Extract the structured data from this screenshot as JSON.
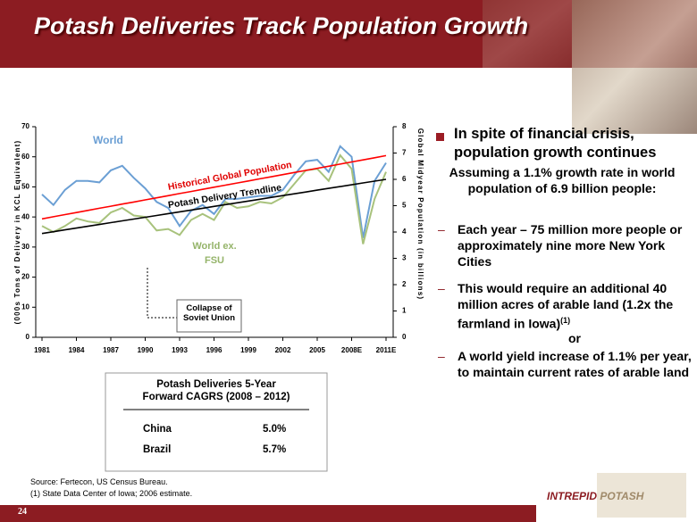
{
  "header": {
    "title": "Potash Deliveries Track Population Growth"
  },
  "chart_data": {
    "type": "line",
    "y_label": "(000s Tons of Delivery in KCL Equivalent)",
    "y2_label": "Global Midyear Population (in billions)",
    "categories": [
      "1981",
      null,
      null,
      "1984",
      null,
      null,
      "1987",
      null,
      null,
      "1990",
      null,
      null,
      "1993",
      null,
      null,
      "1996",
      null,
      null,
      "1999",
      null,
      null,
      "2002",
      null,
      null,
      "2005",
      null,
      null,
      "2008E",
      null,
      null,
      "2011E"
    ],
    "ylim": [
      0,
      70
    ],
    "yticks": [
      0,
      10,
      20,
      30,
      40,
      50,
      60,
      70
    ],
    "y2lim": [
      0,
      8
    ],
    "y2ticks": [
      0,
      1,
      2,
      3,
      4,
      5,
      6,
      7,
      8
    ],
    "series": [
      {
        "name": "World",
        "color": "#6b9fd4",
        "values": [
          47.5,
          44,
          49,
          52,
          52,
          51.5,
          55.5,
          57,
          53,
          49.5,
          45,
          43,
          37,
          42,
          44,
          41,
          46,
          46,
          46.5,
          47,
          47,
          49,
          54,
          58.5,
          59,
          55,
          63.5,
          60,
          33,
          52,
          58
        ]
      },
      {
        "name": "World ex. FSU",
        "color": "#a8c27c",
        "values": [
          37,
          35,
          37,
          39.5,
          38.5,
          38,
          41.5,
          43,
          40.5,
          40,
          35.5,
          36,
          34,
          39,
          41,
          39,
          45,
          43,
          43.5,
          45,
          44.5,
          46.5,
          51,
          55.5,
          56,
          52,
          60.5,
          56,
          31,
          46,
          55
        ]
      },
      {
        "name": "Historical Global Population",
        "color": "#ff0000",
        "axis": "y2",
        "values": [
          4.5,
          4.58,
          4.66,
          4.74,
          4.82,
          4.9,
          4.98,
          5.06,
          5.14,
          5.22,
          5.3,
          5.38,
          5.46,
          5.54,
          5.62,
          5.7,
          5.78,
          5.86,
          5.94,
          6.02,
          6.1,
          6.18,
          6.26,
          6.34,
          6.42,
          6.5,
          6.58,
          6.66,
          6.74,
          6.82,
          6.9
        ]
      },
      {
        "name": "Potash Delivery Trendline",
        "color": "#000000",
        "values": [
          34.5,
          35.1,
          35.7,
          36.3,
          36.9,
          37.5,
          38.1,
          38.7,
          39.3,
          39.9,
          40.5,
          41.1,
          41.7,
          42.3,
          42.9,
          43.5,
          44.1,
          44.7,
          45.3,
          45.9,
          46.5,
          47.1,
          47.7,
          48.3,
          48.9,
          49.5,
          50.1,
          50.7,
          51.3,
          51.9,
          52.5
        ]
      }
    ],
    "annotations": [
      "Collapse of Soviet Union"
    ]
  },
  "table": {
    "title": "Potash Deliveries  5-Year Forward CAGRS (2008 – 2012)",
    "rows": [
      [
        "China",
        "5.0%"
      ],
      [
        "Brazil",
        "5.7%"
      ]
    ]
  },
  "bullets": {
    "main": "In spite of financial crisis, population growth continues",
    "intro": "Assuming a 1.1% growth rate in world population of 6.9 billion people:",
    "items": [
      {
        "text": "Each year – 75 million more people or approximately nine more New York Cities"
      },
      {
        "text": "This would require an additional 40 million acres of arable land (1.2x the farmland in Iowa)",
        "note": "(1)"
      },
      {
        "text": "A world yield increase of 1.1% per year, to maintain current rates of arable land"
      }
    ],
    "connector": "or"
  },
  "footer": {
    "source": "Source:  Fertecon, US Census Bureau.",
    "note": "(1) State Data Center of Iowa; 2006 estimate.",
    "page": "24"
  },
  "logo": {
    "first": "INTREPID",
    "second": "POTASH"
  }
}
